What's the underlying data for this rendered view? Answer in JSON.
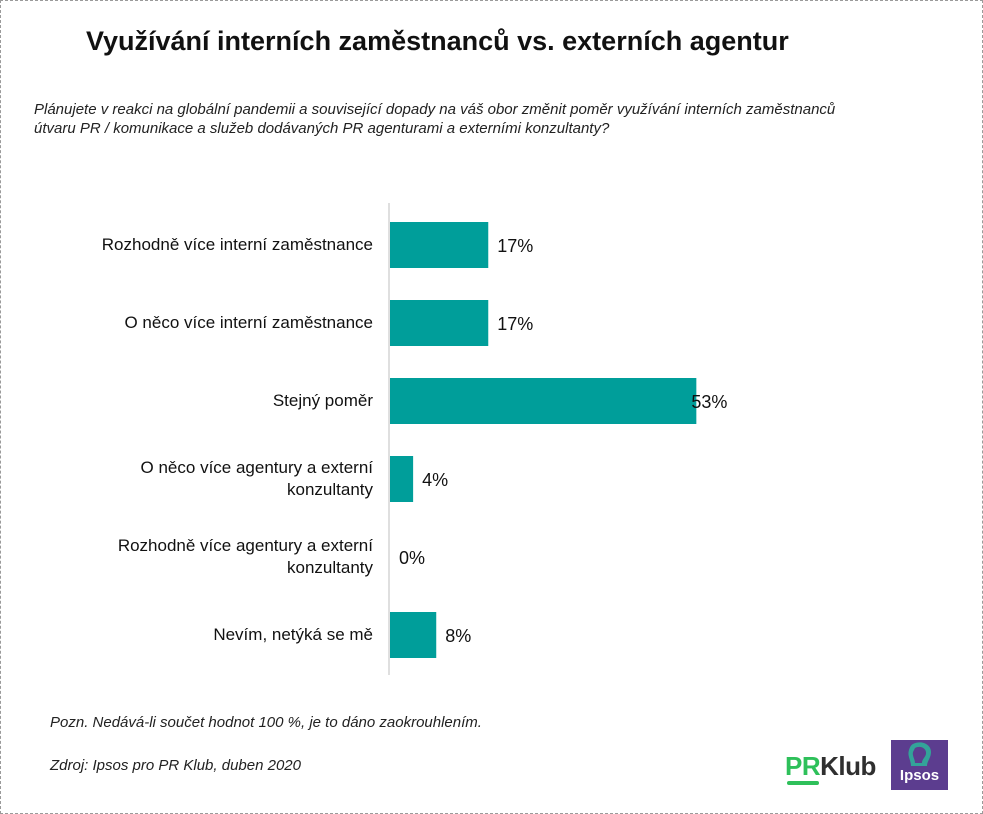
{
  "title": "Využívání interních zaměstnanců vs. externích agentur",
  "question": {
    "line1": "Plánujete v reakci na globální pandemii a související dopady na váš obor změnit poměr využívání interních zaměstnanců",
    "line2": "útvaru PR / komunikace a služeb dodávaných PR agenturami a externími konzultanty?"
  },
  "chart_data": {
    "type": "bar",
    "orientation": "horizontal",
    "categories": [
      "Rozhodně více  interní zaměstnance",
      "O něco více interní zaměstnance",
      "Stejný poměr",
      "O něco více agentury a externí konzultanty",
      "Rozhodně více agentury a externí konzultanty",
      "Nevím, netýká se mě"
    ],
    "category_lines": [
      [
        "Rozhodně více  interní zaměstnance"
      ],
      [
        "O něco více interní zaměstnance"
      ],
      [
        "Stejný poměr"
      ],
      [
        "O něco více agentury a externí",
        "konzultanty"
      ],
      [
        "Rozhodně více agentury a externí",
        "konzultanty"
      ],
      [
        "Nevím, netýká se mě"
      ]
    ],
    "values": [
      17,
      17,
      53,
      4,
      0,
      8
    ],
    "value_labels": [
      "17%",
      "17%",
      "53%",
      "4%",
      "0%",
      "8%"
    ],
    "unit": "%",
    "bar_color": "#009e9a",
    "axis_line_color": "#bfbfbf",
    "grid": false,
    "legend": "none"
  },
  "footer": {
    "note": "Pozn. Nedává-li součet hodnot 100 %, je to dáno zaokrouhlením.",
    "source": "Zdroj: Ipsos pro PR Klub, duben 2020"
  },
  "logos": {
    "prklub_pr": "PR",
    "prklub_klub": "Klub",
    "ipsos": "Ipsos",
    "prklub_color": "#2ec05a",
    "ipsos_color": "#5c3d8f",
    "ipsos_accent": "#2fae9a"
  }
}
